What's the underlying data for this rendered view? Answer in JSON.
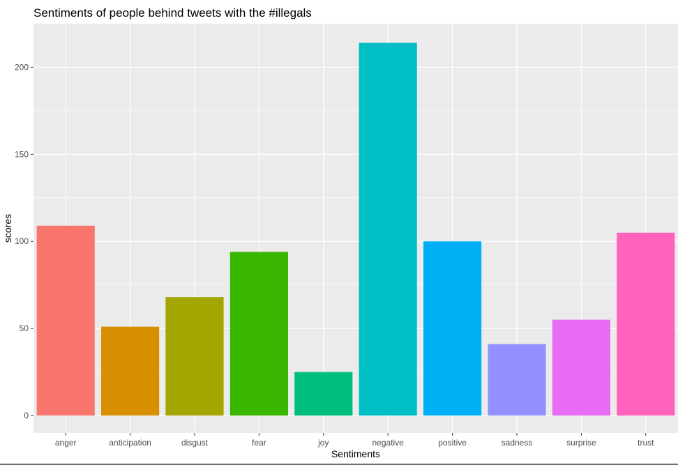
{
  "chart_data": {
    "type": "bar",
    "title": "Sentiments of people behind tweets with the #illegals",
    "xlabel": "Sentiments",
    "ylabel": "scores",
    "categories": [
      "anger",
      "anticipation",
      "disgust",
      "fear",
      "joy",
      "negative",
      "positive",
      "sadness",
      "surprise",
      "trust"
    ],
    "values": [
      109,
      51,
      68,
      94,
      25,
      214,
      100,
      41,
      55,
      105
    ],
    "colors": [
      "#F8766D",
      "#D89000",
      "#A3A500",
      "#39B600",
      "#00BF7D",
      "#00BFC4",
      "#00B0F6",
      "#9590FF",
      "#E76BF3",
      "#FF62BC"
    ],
    "ylim": [
      -10,
      225
    ],
    "yticks": [
      0,
      50,
      100,
      150,
      200
    ],
    "grid": true,
    "legend": "none",
    "panel_background": "#EBEBEB",
    "grid_color": "#FFFFFF"
  }
}
